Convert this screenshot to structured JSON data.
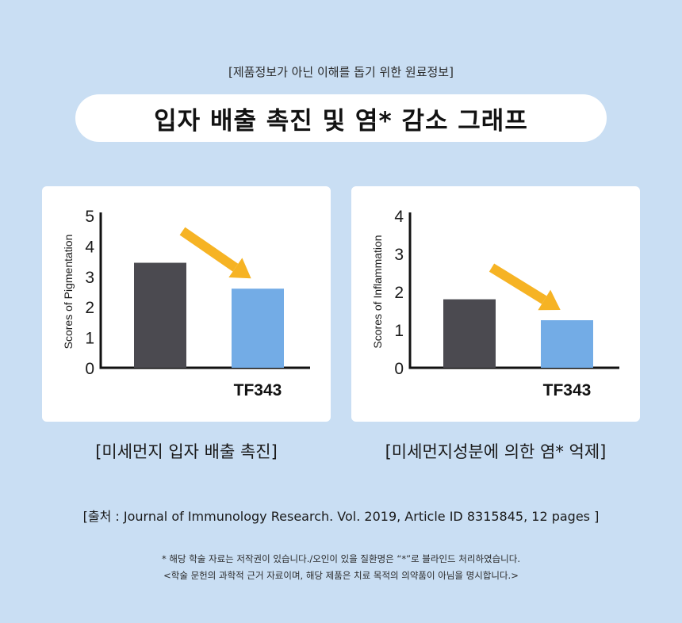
{
  "header": {
    "note": "[제품정보가 아닌 이해를 돕기 위한 원료정보]",
    "title": "입자 배출 촉진 및 염* 감소 그래프"
  },
  "chart_data": [
    {
      "type": "bar",
      "categories": [
        "",
        "TF343"
      ],
      "values": [
        3.45,
        2.6
      ],
      "ylabel": "Scores of Pigmentation",
      "ylim": [
        0,
        5
      ],
      "yticks": [
        "0",
        "1",
        "2",
        "3",
        "4",
        "5"
      ],
      "colors": [
        "#4b4a50",
        "#73ace6"
      ],
      "arrow_color": "#f6b324",
      "caption": "[미세먼지 입자 배출 촉진]"
    },
    {
      "type": "bar",
      "categories": [
        "",
        "TF343"
      ],
      "values": [
        1.8,
        1.25
      ],
      "ylabel": "Scores of Inflammation",
      "ylim": [
        0,
        4
      ],
      "yticks": [
        "0",
        "1",
        "2",
        "3",
        "4"
      ],
      "colors": [
        "#4b4a50",
        "#73ace6"
      ],
      "arrow_color": "#f6b324",
      "caption": "[미세먼지성분에 의한 염* 억제]"
    }
  ],
  "source": "[출처 : Journal of Immunology Research. Vol. 2019, Article ID 8315845, 12 pages ]",
  "disclaimer": {
    "line1": "* 해당 학술 자료는 저작권이 있습니다./오인이 있을 질환명은 “*”로 블라인드 처리하였습니다.",
    "line2": "<학술 문헌의 과학적 근거 자료이며, 해당 제품은 치료 목적의 의약품이 아님을 명시합니다.>"
  }
}
